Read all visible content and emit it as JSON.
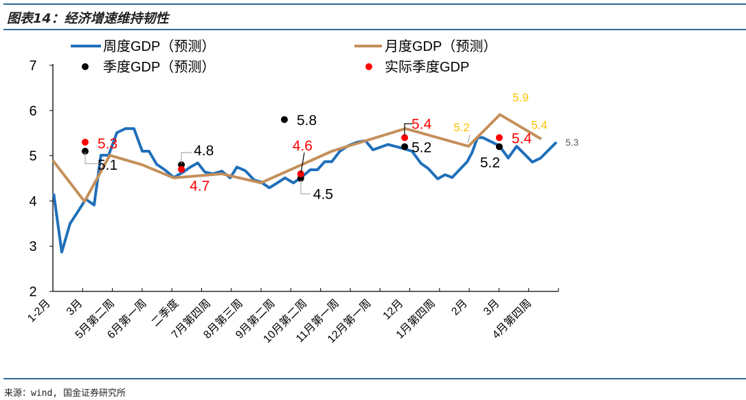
{
  "title": "图表14：经济增速维持韧性",
  "source": "来源：wind, 国金证券研究所",
  "chart_data": {
    "type": "line",
    "title": "",
    "xlabel": "",
    "ylabel": "",
    "ylim": [
      2,
      7
    ],
    "yticks": [
      "2",
      "3",
      "4",
      "5",
      "6",
      "7"
    ],
    "grid": false,
    "legend_placement": "top",
    "categories": [
      "1-2月",
      "3月",
      "5月第二周",
      "6月第一周",
      "二季度",
      "7月第四周",
      "8月第三周",
      "9月第二周",
      "10月第二周",
      "11月第一周",
      "12月第一周",
      "12月",
      "1月第四周",
      "2月",
      "3月",
      "4月第四周"
    ],
    "series": [
      {
        "name": "周度GDP（预测）",
        "kind": "line",
        "color": "#1f6fba",
        "points": [
          [
            0.09,
            4.16
          ],
          [
            0.34,
            2.87
          ],
          [
            0.6,
            3.5
          ],
          [
            0.84,
            3.76
          ],
          [
            1.09,
            4.04
          ],
          [
            1.35,
            3.91
          ],
          [
            1.56,
            5.01
          ],
          [
            1.8,
            5.01
          ],
          [
            2.06,
            5.51
          ],
          [
            2.33,
            5.6
          ],
          [
            2.59,
            5.6
          ],
          [
            2.85,
            5.1
          ],
          [
            3.06,
            5.1
          ],
          [
            3.3,
            4.81
          ],
          [
            3.55,
            4.69
          ],
          [
            3.83,
            4.52
          ],
          [
            4.13,
            4.64
          ],
          [
            4.35,
            4.75
          ],
          [
            4.58,
            4.84
          ],
          [
            4.8,
            4.64
          ],
          [
            5.05,
            4.6
          ],
          [
            5.33,
            4.66
          ],
          [
            5.59,
            4.51
          ],
          [
            5.8,
            4.75
          ],
          [
            6.06,
            4.67
          ],
          [
            6.34,
            4.46
          ],
          [
            6.55,
            4.42
          ],
          [
            6.81,
            4.29
          ],
          [
            7.04,
            4.39
          ],
          [
            7.3,
            4.51
          ],
          [
            7.56,
            4.4
          ],
          [
            7.79,
            4.51
          ],
          [
            8.09,
            4.69
          ],
          [
            8.31,
            4.69
          ],
          [
            8.54,
            4.87
          ],
          [
            8.76,
            4.87
          ],
          [
            9.01,
            5.1
          ],
          [
            9.27,
            5.22
          ],
          [
            9.55,
            5.3
          ],
          [
            9.81,
            5.33
          ],
          [
            10.04,
            5.13
          ],
          [
            10.51,
            5.25
          ],
          [
            10.99,
            5.16
          ],
          [
            11.26,
            5.1
          ],
          [
            11.54,
            4.83
          ],
          [
            11.76,
            4.72
          ],
          [
            12.06,
            4.49
          ],
          [
            12.29,
            4.58
          ],
          [
            12.51,
            4.52
          ],
          [
            12.98,
            4.87
          ],
          [
            13.13,
            5.07
          ],
          [
            13.3,
            5.4
          ],
          [
            13.47,
            5.4
          ],
          [
            13.98,
            5.22
          ],
          [
            14.26,
            4.95
          ],
          [
            14.52,
            5.21
          ],
          [
            15.01,
            4.86
          ],
          [
            15.27,
            4.95
          ],
          [
            15.76,
            5.3
          ]
        ],
        "labels": [
          {
            "index": 58,
            "text": "5.3",
            "color": "#595959"
          }
        ]
      },
      {
        "name": "月度GDP（预测）",
        "kind": "line",
        "color": "#c48f5a",
        "points": [
          [
            0.06,
            4.9
          ],
          [
            1.05,
            3.99
          ],
          [
            1.84,
            5.01
          ],
          [
            2.85,
            4.8
          ],
          [
            3.83,
            4.51
          ],
          [
            5.33,
            4.6
          ],
          [
            6.55,
            4.4
          ],
          [
            8.76,
            5.1
          ],
          [
            11.05,
            5.6
          ],
          [
            13.02,
            5.21
          ],
          [
            14.0,
            5.91
          ],
          [
            15.29,
            5.37
          ]
        ],
        "labels": [
          {
            "index": 9,
            "text": "5.2",
            "color": "#ffc000"
          },
          {
            "index": 10,
            "text": "5.9",
            "color": "#ffc000"
          },
          {
            "index": 11,
            "text": "5.4",
            "color": "#ffc000"
          }
        ]
      },
      {
        "name": "季度GDP（预测）",
        "kind": "scatter",
        "color": "#000000",
        "points": [
          [
            1.07,
            5.1
          ],
          [
            4.07,
            4.8
          ],
          [
            7.28,
            5.8
          ],
          [
            7.79,
            4.5
          ],
          [
            11.03,
            5.2
          ],
          [
            13.98,
            5.2
          ]
        ],
        "labels": [
          {
            "index": 0,
            "text": "5.1"
          },
          {
            "index": 1,
            "text": "4.8"
          },
          {
            "index": 2,
            "text": "5.8"
          },
          {
            "index": 3,
            "text": "4.5"
          },
          {
            "index": 4,
            "text": "5.2"
          },
          {
            "index": 5,
            "text": "5.2"
          }
        ]
      },
      {
        "name": "实际季度GDP",
        "kind": "scatter",
        "color": "#ff0000",
        "points": [
          [
            1.07,
            5.3
          ],
          [
            4.07,
            4.7
          ],
          [
            7.79,
            4.6
          ],
          [
            11.03,
            5.4
          ],
          [
            13.98,
            5.4
          ]
        ],
        "labels": [
          {
            "index": 0,
            "text": "5.3"
          },
          {
            "index": 1,
            "text": "4.7"
          },
          {
            "index": 2,
            "text": "4.6"
          },
          {
            "index": 3,
            "text": "5.4"
          },
          {
            "index": 4,
            "text": "5.4"
          }
        ]
      }
    ]
  }
}
